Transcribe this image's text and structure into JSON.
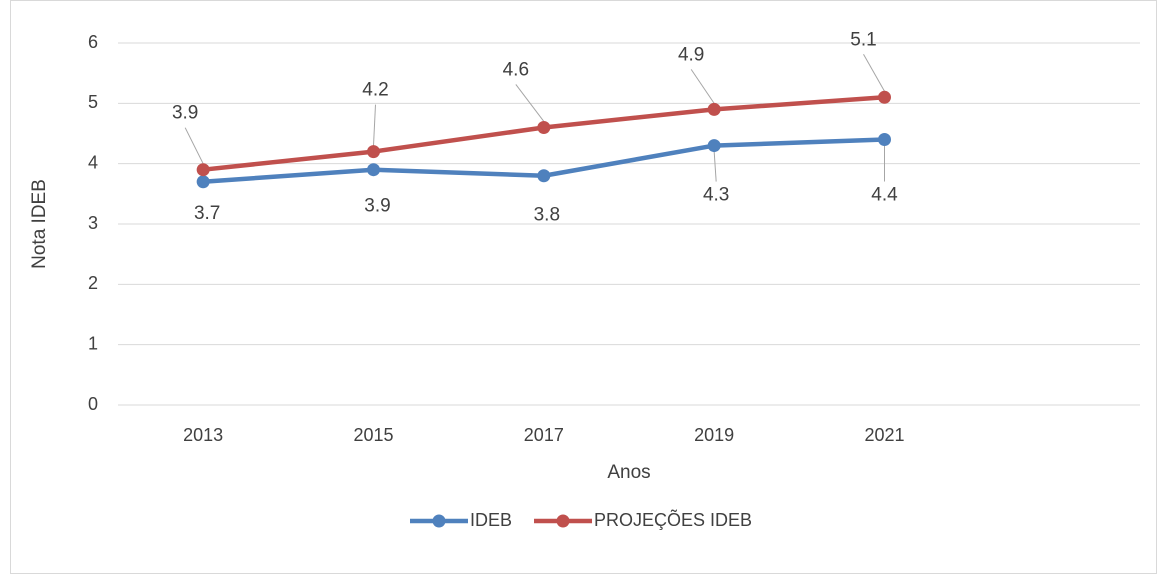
{
  "chart_data": {
    "type": "line",
    "categories": [
      "2013",
      "2015",
      "2017",
      "2019",
      "2021",
      null
    ],
    "series": [
      {
        "name": "IDEB",
        "color": "#4f81bd",
        "values": [
          3.7,
          3.9,
          3.8,
          4.3,
          4.4,
          null
        ]
      },
      {
        "name": "PROJEÇÕES IDEB",
        "color": "#c0504d",
        "values": [
          3.9,
          4.2,
          4.6,
          4.9,
          5.1,
          null
        ]
      }
    ],
    "ylim": [
      0,
      6
    ],
    "yticks": [
      0,
      1,
      2,
      3,
      4,
      5,
      6
    ],
    "grid": true,
    "y_label": "Nota IDEB",
    "x_label": "Anos",
    "legend": "bottom"
  }
}
